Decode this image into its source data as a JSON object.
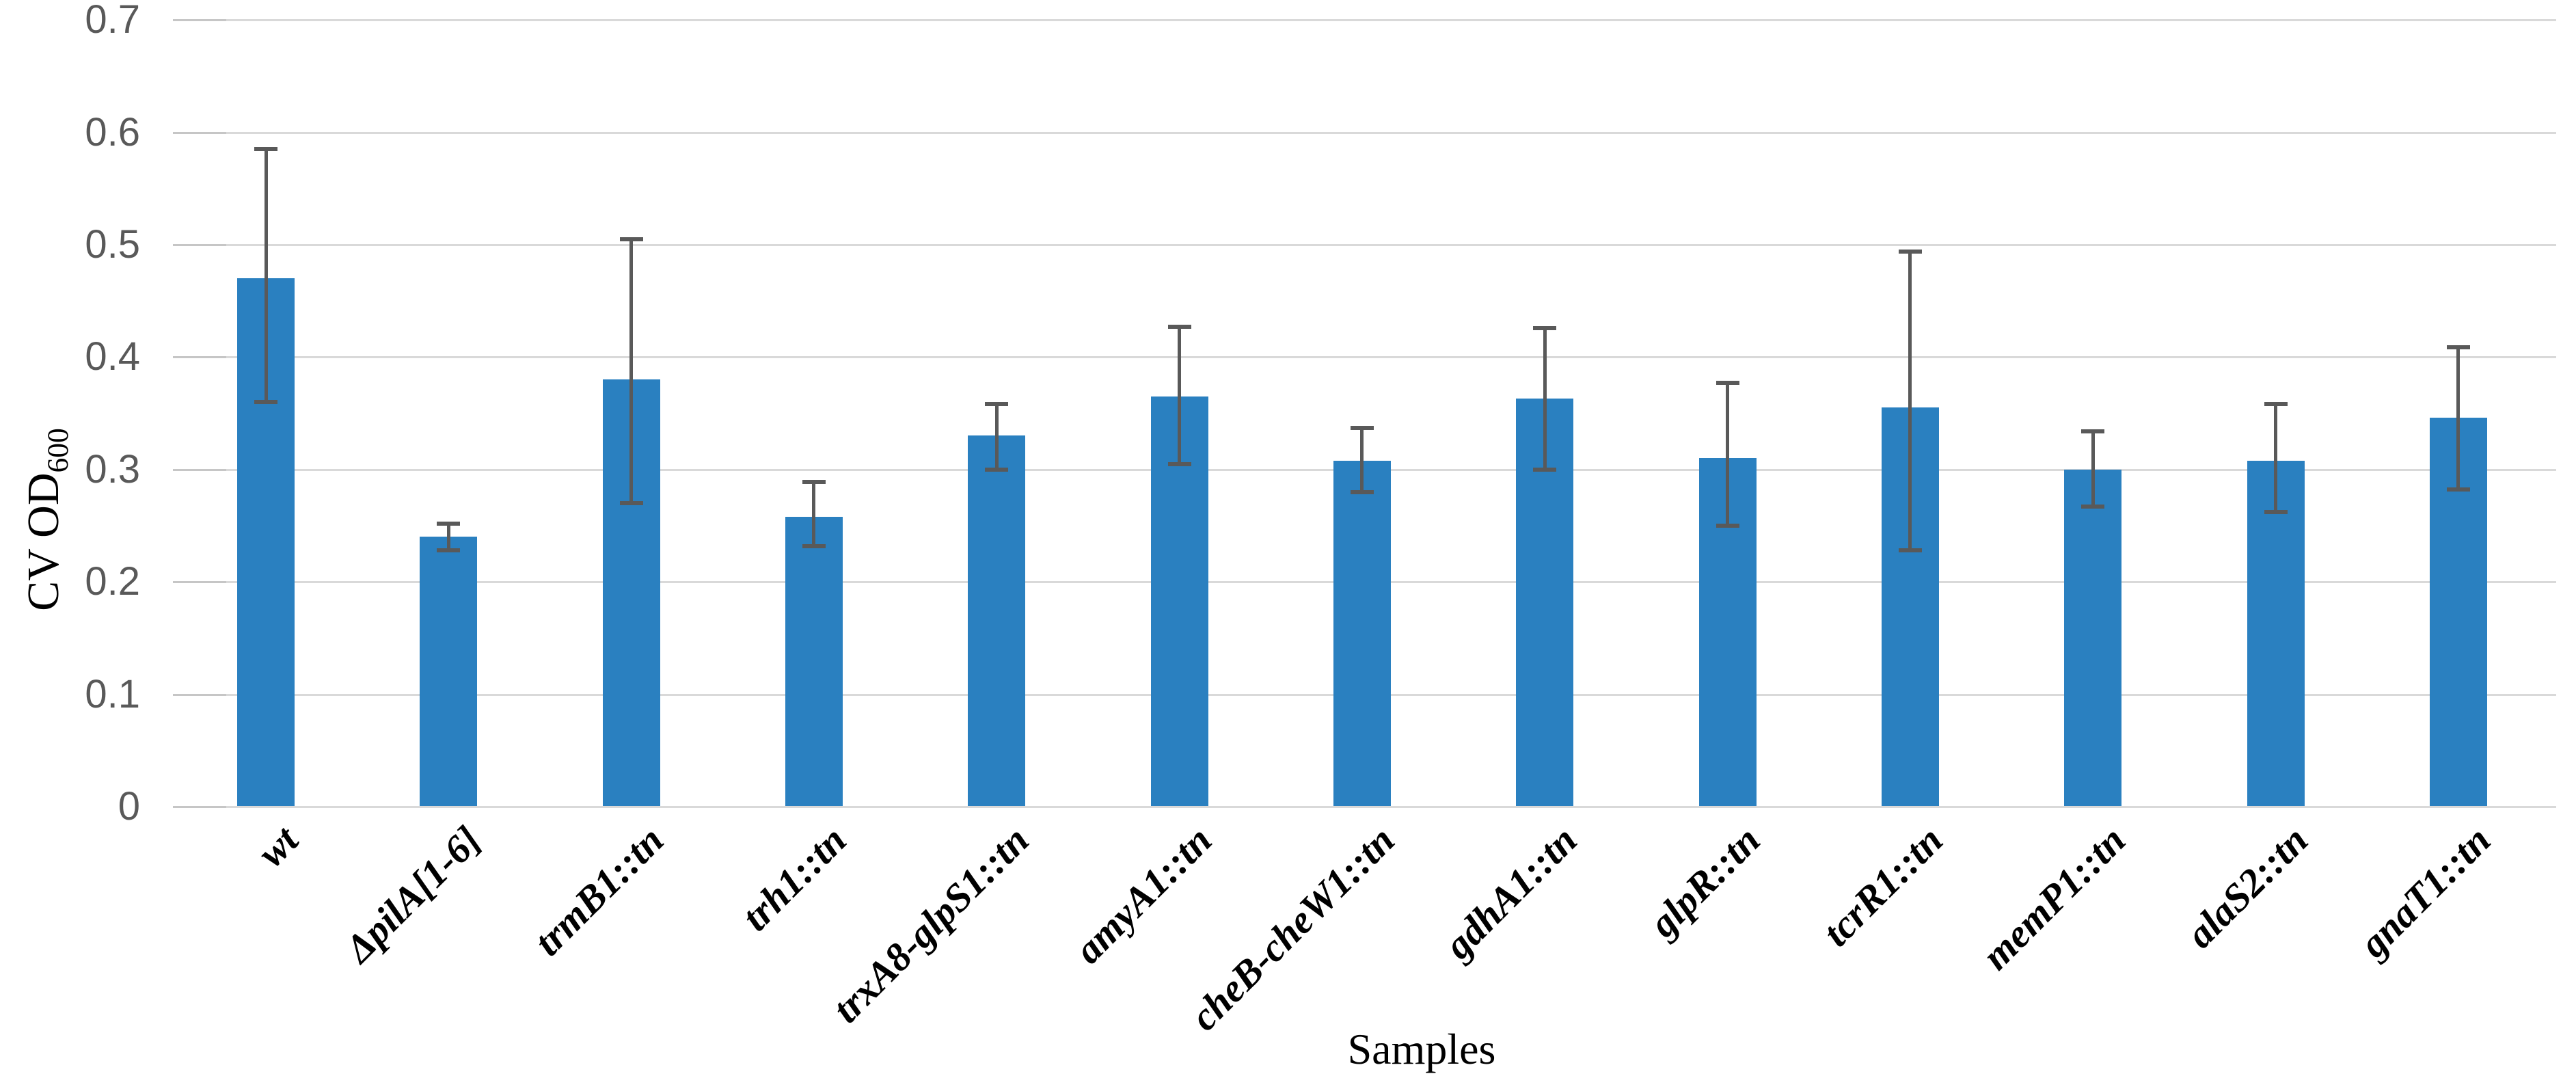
{
  "chart_data": {
    "type": "bar",
    "title": "",
    "xlabel": "Samples",
    "ylabel_main": "CV OD",
    "ylabel_sub": "600",
    "ylim": [
      0,
      0.7
    ],
    "ytick_step": 0.1,
    "ytick_labels": [
      "0.7",
      "0.6",
      "0.5",
      "0.4",
      "0.3",
      "0.2",
      "0.1",
      "0"
    ],
    "grid": true,
    "legend": false,
    "categories": [
      "wt",
      "ΔpilA[1-6]",
      "trmB1::tn",
      "trh1::tn",
      "trxA8-glpS1::tn",
      "amyA1::tn",
      "cheB-cheW1::tn",
      "gdhA1::tn",
      "glpR::tn",
      "tcrR1::tn",
      "memP1::tn",
      "alaS2::tn",
      "gnaT1::tn"
    ],
    "values": [
      0.47,
      0.24,
      0.38,
      0.258,
      0.33,
      0.365,
      0.308,
      0.363,
      0.31,
      0.355,
      0.3,
      0.308,
      0.346
    ],
    "error_low": [
      0.36,
      0.228,
      0.27,
      0.232,
      0.3,
      0.305,
      0.28,
      0.3,
      0.25,
      0.228,
      0.267,
      0.262,
      0.282
    ],
    "error_high": [
      0.585,
      0.252,
      0.505,
      0.289,
      0.358,
      0.427,
      0.337,
      0.426,
      0.377,
      0.494,
      0.334,
      0.358,
      0.409
    ],
    "colors": {
      "bar": "#2a80c0",
      "error_bar": "#595959",
      "gridline": "#d9d9d9",
      "tick_label": "#595959",
      "text": "#000000",
      "background": "#ffffff"
    }
  }
}
